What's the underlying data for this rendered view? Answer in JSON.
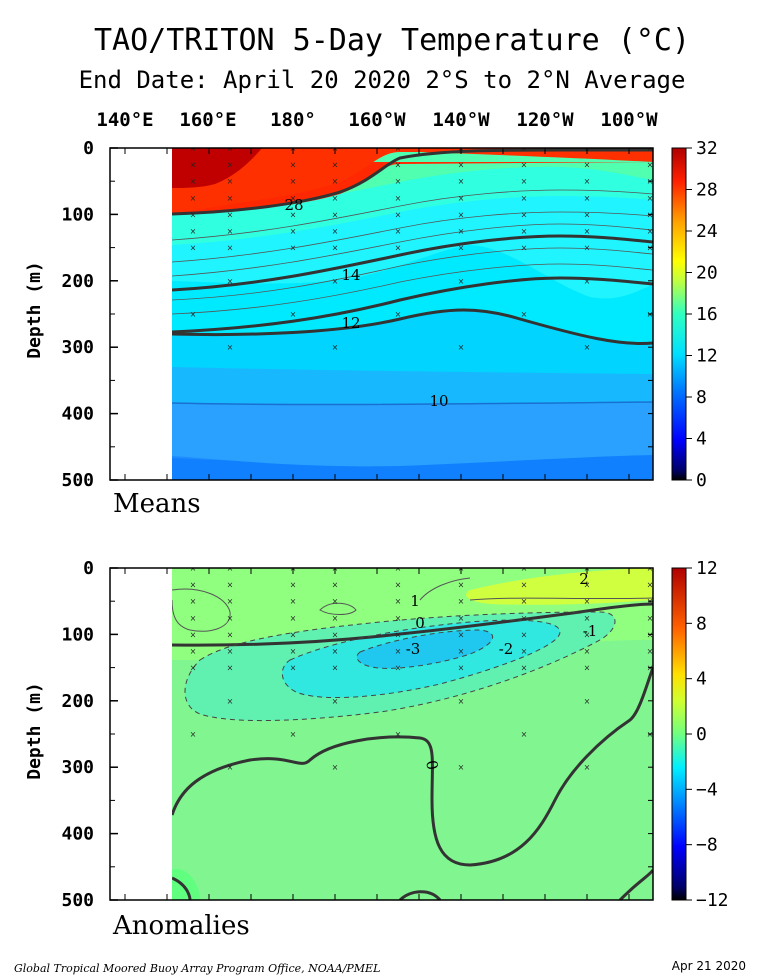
{
  "title": "TAO/TRITON 5-Day Temperature (°C)",
  "subtitle": "End Date: April 20 2020   2°S to 2°N Average",
  "footer_left": "Global Tropical Moored Buoy Array Program Office, NOAA/PMEL",
  "footer_right": "Apr 21 2020",
  "longitude_labels": [
    "140°E",
    "160°E",
    "180°",
    "160°W",
    "140°W",
    "120°W",
    "100°W"
  ],
  "chart_data": [
    {
      "type": "heatmap",
      "panel_label": "Means",
      "ylabel": "Depth (m)",
      "ylim": [
        0,
        500
      ],
      "y_ticks": [
        0,
        100,
        200,
        300,
        400,
        500
      ],
      "colorbar": {
        "range": [
          0,
          32
        ],
        "ticks": [
          0,
          4,
          8,
          12,
          16,
          20,
          24,
          28,
          32
        ]
      },
      "contour_labels": [
        {
          "value": 28,
          "x": "171°W",
          "depth": 90
        },
        {
          "value": 14,
          "x": "156°W",
          "depth": 192
        },
        {
          "value": 12,
          "x": "157°W",
          "depth": 265
        },
        {
          "value": 10,
          "x": "143°W",
          "depth": 382
        }
      ],
      "isotherm_depths": {
        "lon": [
          150,
          160,
          170,
          180,
          190,
          200,
          210,
          220,
          230,
          240,
          250,
          260,
          270
        ],
        "t28": [
          100,
          100,
          98,
          95,
          70,
          40,
          15,
          0,
          0,
          0,
          0,
          0,
          0
        ],
        "t24": [
          130,
          130,
          128,
          125,
          115,
          100,
          88,
          78,
          70,
          60,
          48,
          38,
          32
        ],
        "t20": [
          150,
          150,
          148,
          142,
          132,
          120,
          108,
          98,
          92,
          85,
          78,
          70,
          65
        ],
        "t14": [
          215,
          212,
          208,
          202,
          192,
          182,
          175,
          170,
          168,
          168,
          170,
          175,
          180
        ],
        "t12": [
          280,
          282,
          284,
          280,
          268,
          250,
          240,
          245,
          262,
          282,
          298,
          292,
          283
        ],
        "t10": [
          385,
          385,
          385,
          385,
          383,
          380,
          378,
          376,
          378,
          380,
          380,
          380,
          380
        ]
      }
    },
    {
      "type": "heatmap",
      "panel_label": "Anomalies",
      "ylabel": "Depth (m)",
      "ylim": [
        0,
        500
      ],
      "y_ticks": [
        0,
        100,
        200,
        300,
        400,
        500
      ],
      "colorbar": {
        "range": [
          -12,
          12
        ],
        "ticks": [
          -12,
          -8,
          -4,
          0,
          4,
          8,
          12
        ]
      },
      "contour_labels": [
        {
          "value": "1",
          "x": "148°W",
          "depth": 45
        },
        {
          "value": "0",
          "x": "143°W",
          "depth": 78
        },
        {
          "value": "-3",
          "x": "142°W",
          "depth": 118
        },
        {
          "value": "-2",
          "x": "126°W",
          "depth": 120
        },
        {
          "value": "-1",
          "x": "100°W",
          "depth": 92
        },
        {
          "value": "2",
          "x": "100°W",
          "depth": 15
        },
        {
          "value": "0",
          "x": "144°W",
          "depth": 290
        }
      ]
    }
  ]
}
